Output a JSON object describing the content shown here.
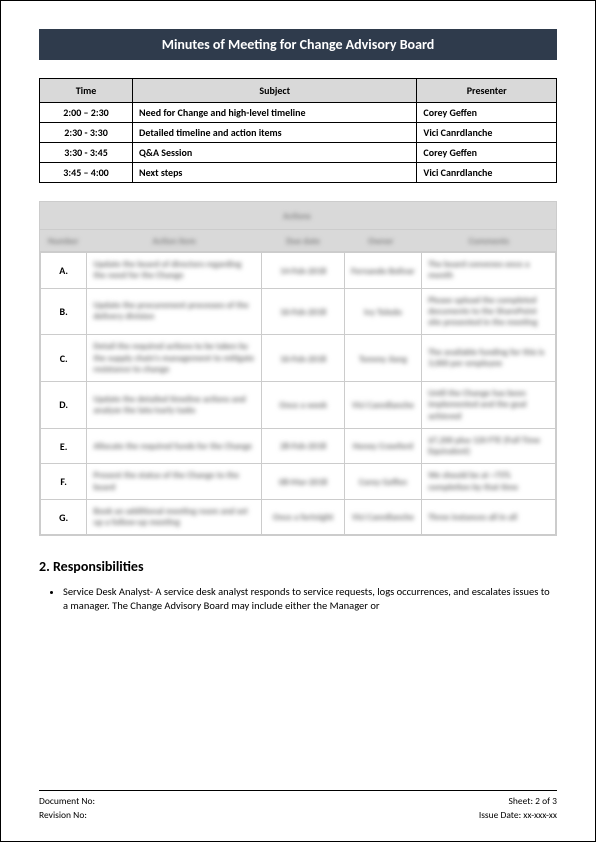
{
  "title": "Minutes of Meeting for Change Advisory Board",
  "agenda": {
    "headers": {
      "time": "Time",
      "subject": "Subject",
      "presenter": "Presenter"
    },
    "rows": [
      {
        "time": "2:00 – 2:30",
        "subject": "Need for Change and high-level timeline",
        "presenter": "Corey Geffen"
      },
      {
        "time": "2:30 - 3:30",
        "subject": "Detailed timeline and action items",
        "presenter": "Vici Canrdlanche"
      },
      {
        "time": "3:30 - 3:45",
        "subject": "Q&A Session",
        "presenter": "Corey Geffen"
      },
      {
        "time": "3:45 – 4:00",
        "subject": "Next steps",
        "presenter": "Vici Canrdlanche"
      }
    ]
  },
  "actions": {
    "title_blur": "Actions",
    "col_blur": [
      "Number",
      "Action item",
      "Due date",
      "Owner",
      "Comments"
    ],
    "rows": [
      {
        "letter": "A.",
        "desc": "Update the board of directors regarding the need for the Change",
        "due": "14-Feb-2018",
        "owner": "Fernando Bolivar",
        "comm": "The board convenes once a month"
      },
      {
        "letter": "B.",
        "desc": "Update the procurement processes of the delivery division",
        "due": "16-Feb-2018",
        "owner": "Ivy Toledo",
        "comm": "Please upload the completed documents to the SharePoint site presented in the meeting"
      },
      {
        "letter": "C.",
        "desc": "Detail the required actions to be taken by the supply chain's management to mitigate resistance to change",
        "due": "16-Feb-2018",
        "owner": "Tommy Jiang",
        "comm": "The available funding for this is 3,000 per employee"
      },
      {
        "letter": "D.",
        "desc": "Update the detailed timeline actions and analyze the late/early tasks",
        "due": "Once a week",
        "owner": "Vici Canrdlanche",
        "comm": "Until the Change has been implemented and the goal achieved"
      },
      {
        "letter": "E.",
        "desc": "Allocate the required funds for the Change",
        "due": "28-Feb-2018",
        "owner": "Honey Crawford",
        "comm": "$7,200 plus 120 FTE (Full Time Equivalent)"
      },
      {
        "letter": "F.",
        "desc": "Present the status of the Change to the board",
        "due": "08-Mar-2018",
        "owner": "Corey Geffen",
        "comm": "We should be at ~75% completion by that time"
      },
      {
        "letter": "G.",
        "desc": "Book an additional meeting room and set up a follow-up meeting",
        "due": "Once a fortnight",
        "owner": "Vici Canrdlanche",
        "comm": "Three instances all in all"
      }
    ]
  },
  "responsibilities": {
    "heading": "2. Responsibilities",
    "item1": "Service Desk Analyst- A service desk analyst responds to service requests, logs occurrences, and escalates issues to a manager. The Change Advisory Board may include either the Manager or"
  },
  "footer": {
    "doc_no": "Document No:",
    "sheet": "Sheet: 2 of 3",
    "rev_no": "Revision No:",
    "issue": "Issue Date: xx-xxx-xx"
  },
  "colors": {
    "title_bg": "#2f3b4c",
    "header_bg": "#d9d9d9",
    "border": "#000000",
    "light_border": "#cccccc"
  }
}
